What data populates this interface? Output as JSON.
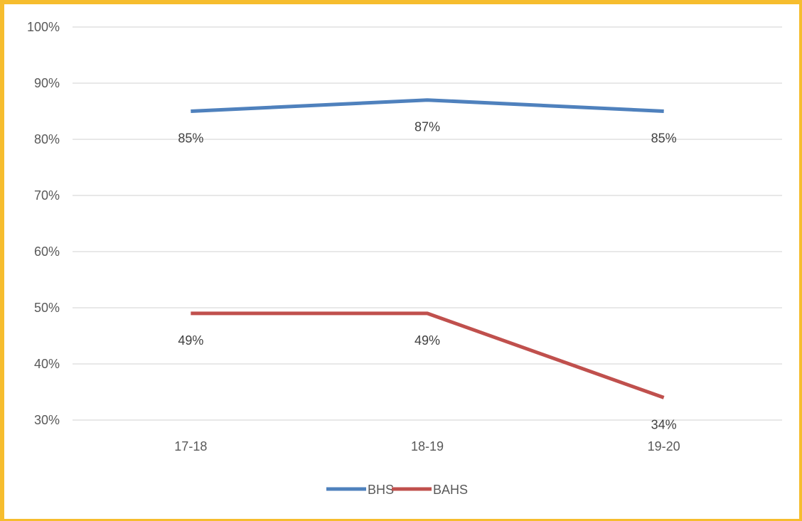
{
  "chart_data": {
    "type": "line",
    "categories": [
      "17-18",
      "18-19",
      "19-20"
    ],
    "series": [
      {
        "name": "BHS",
        "values": [
          85,
          87,
          85
        ],
        "labels": [
          "85%",
          "87%",
          "85%"
        ],
        "color": "#4f81bd"
      },
      {
        "name": "BAHS",
        "values": [
          49,
          49,
          34
        ],
        "labels": [
          "49%",
          "49%",
          "34%"
        ],
        "color": "#c0504d"
      }
    ],
    "y_ticks": [
      "30%",
      "40%",
      "50%",
      "60%",
      "70%",
      "80%",
      "90%",
      "100%"
    ],
    "ylim": [
      30,
      100
    ],
    "grid": true,
    "legend_position": "bottom",
    "title": "",
    "xlabel": "",
    "ylabel": ""
  },
  "colors": {
    "frame_border": "#f6bd2e",
    "gridline": "#d9d9d9",
    "text": "#595959"
  }
}
